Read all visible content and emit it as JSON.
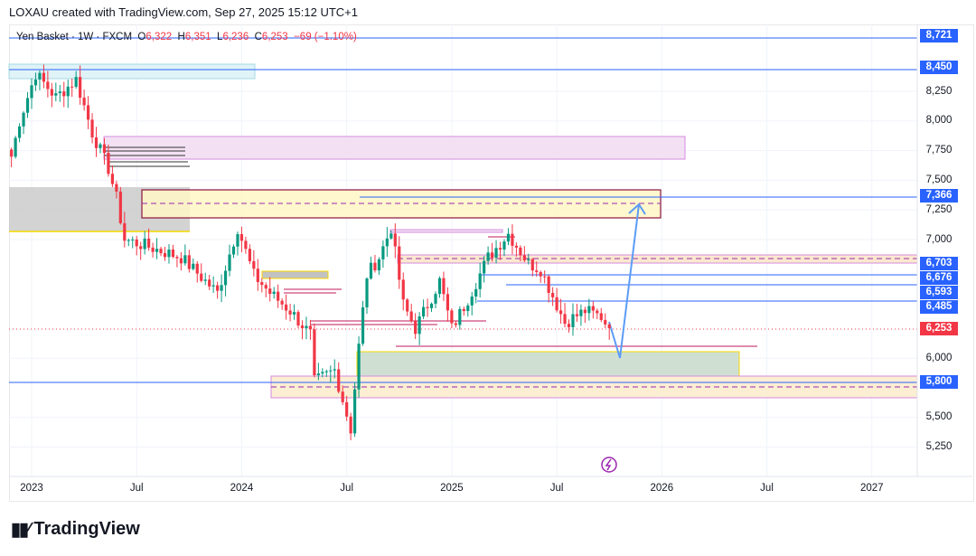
{
  "credit": "LOXAU created with TradingView.com, Sep 27, 2025 15:12 UTC+1",
  "legend": {
    "symbol": "Yen Basket · 1W · FXCM",
    "o_label": "O",
    "o": "6,322",
    "h_label": "H",
    "h": "6,351",
    "l_label": "L",
    "l": "6,236",
    "c_label": "C",
    "c": "6,253",
    "change": "−69 (−1.10%)"
  },
  "colors": {
    "up": "#089981",
    "down": "#f23645",
    "tag": "#2962ff"
  },
  "chart_data": {
    "type": "candlestick",
    "title": "Yen Basket · 1W · FXCM",
    "ylim": [
      5150,
      8800
    ],
    "y_ticks": [
      "8,250",
      "8,000",
      "7,750",
      "7,500",
      "7,250",
      "7,000",
      "6,000",
      "5,500",
      "5,250"
    ],
    "y_tick_values": [
      8250,
      8000,
      7750,
      7500,
      7250,
      7000,
      6000,
      5500,
      5250
    ],
    "x_ticks": [
      "2023",
      "Jul",
      "2024",
      "Jul",
      "2025",
      "Jul",
      "2026",
      "Jul",
      "2027"
    ],
    "x_tick_weeks": [
      0,
      26,
      52,
      78,
      104,
      130,
      156,
      182,
      208
    ],
    "close_anchors_week_price": [
      [
        -5,
        7700
      ],
      [
        -3,
        8000
      ],
      [
        1,
        8400
      ],
      [
        6,
        8200
      ],
      [
        11,
        8350
      ],
      [
        15,
        7900
      ],
      [
        19,
        7600
      ],
      [
        21,
        7350
      ],
      [
        23,
        7000
      ],
      [
        28,
        6950
      ],
      [
        37,
        6850
      ],
      [
        46,
        6550
      ],
      [
        51,
        7100
      ],
      [
        55,
        6700
      ],
      [
        59,
        6550
      ],
      [
        64,
        6400
      ],
      [
        69,
        6200
      ],
      [
        70,
        5800
      ],
      [
        75,
        5900
      ],
      [
        79,
        5400
      ],
      [
        81,
        6100
      ],
      [
        83,
        6700
      ],
      [
        86,
        6850
      ],
      [
        89,
        7100
      ],
      [
        92,
        6450
      ],
      [
        95,
        6250
      ],
      [
        101,
        6650
      ],
      [
        104,
        6250
      ],
      [
        108,
        6500
      ],
      [
        113,
        6850
      ],
      [
        118,
        7050
      ],
      [
        123,
        6800
      ],
      [
        126,
        6750
      ],
      [
        132,
        6300
      ],
      [
        137,
        6400
      ],
      [
        141,
        6350
      ],
      [
        143,
        6253
      ]
    ],
    "level_tags": [
      {
        "label": "8,721",
        "price": 8721
      },
      {
        "label": "8,450",
        "price": 8450
      },
      {
        "label": "7,366",
        "price": 7366
      },
      {
        "label": "6,703",
        "price": 6703
      },
      {
        "label": "6,676",
        "price": 6676
      },
      {
        "label": "6,593",
        "price": 6593
      },
      {
        "label": "6,485",
        "price": 6485
      },
      {
        "label": "5,800",
        "price": 5800
      }
    ],
    "current_price": {
      "label": "6,253",
      "price": 6253
    }
  },
  "brand": "TradingView"
}
